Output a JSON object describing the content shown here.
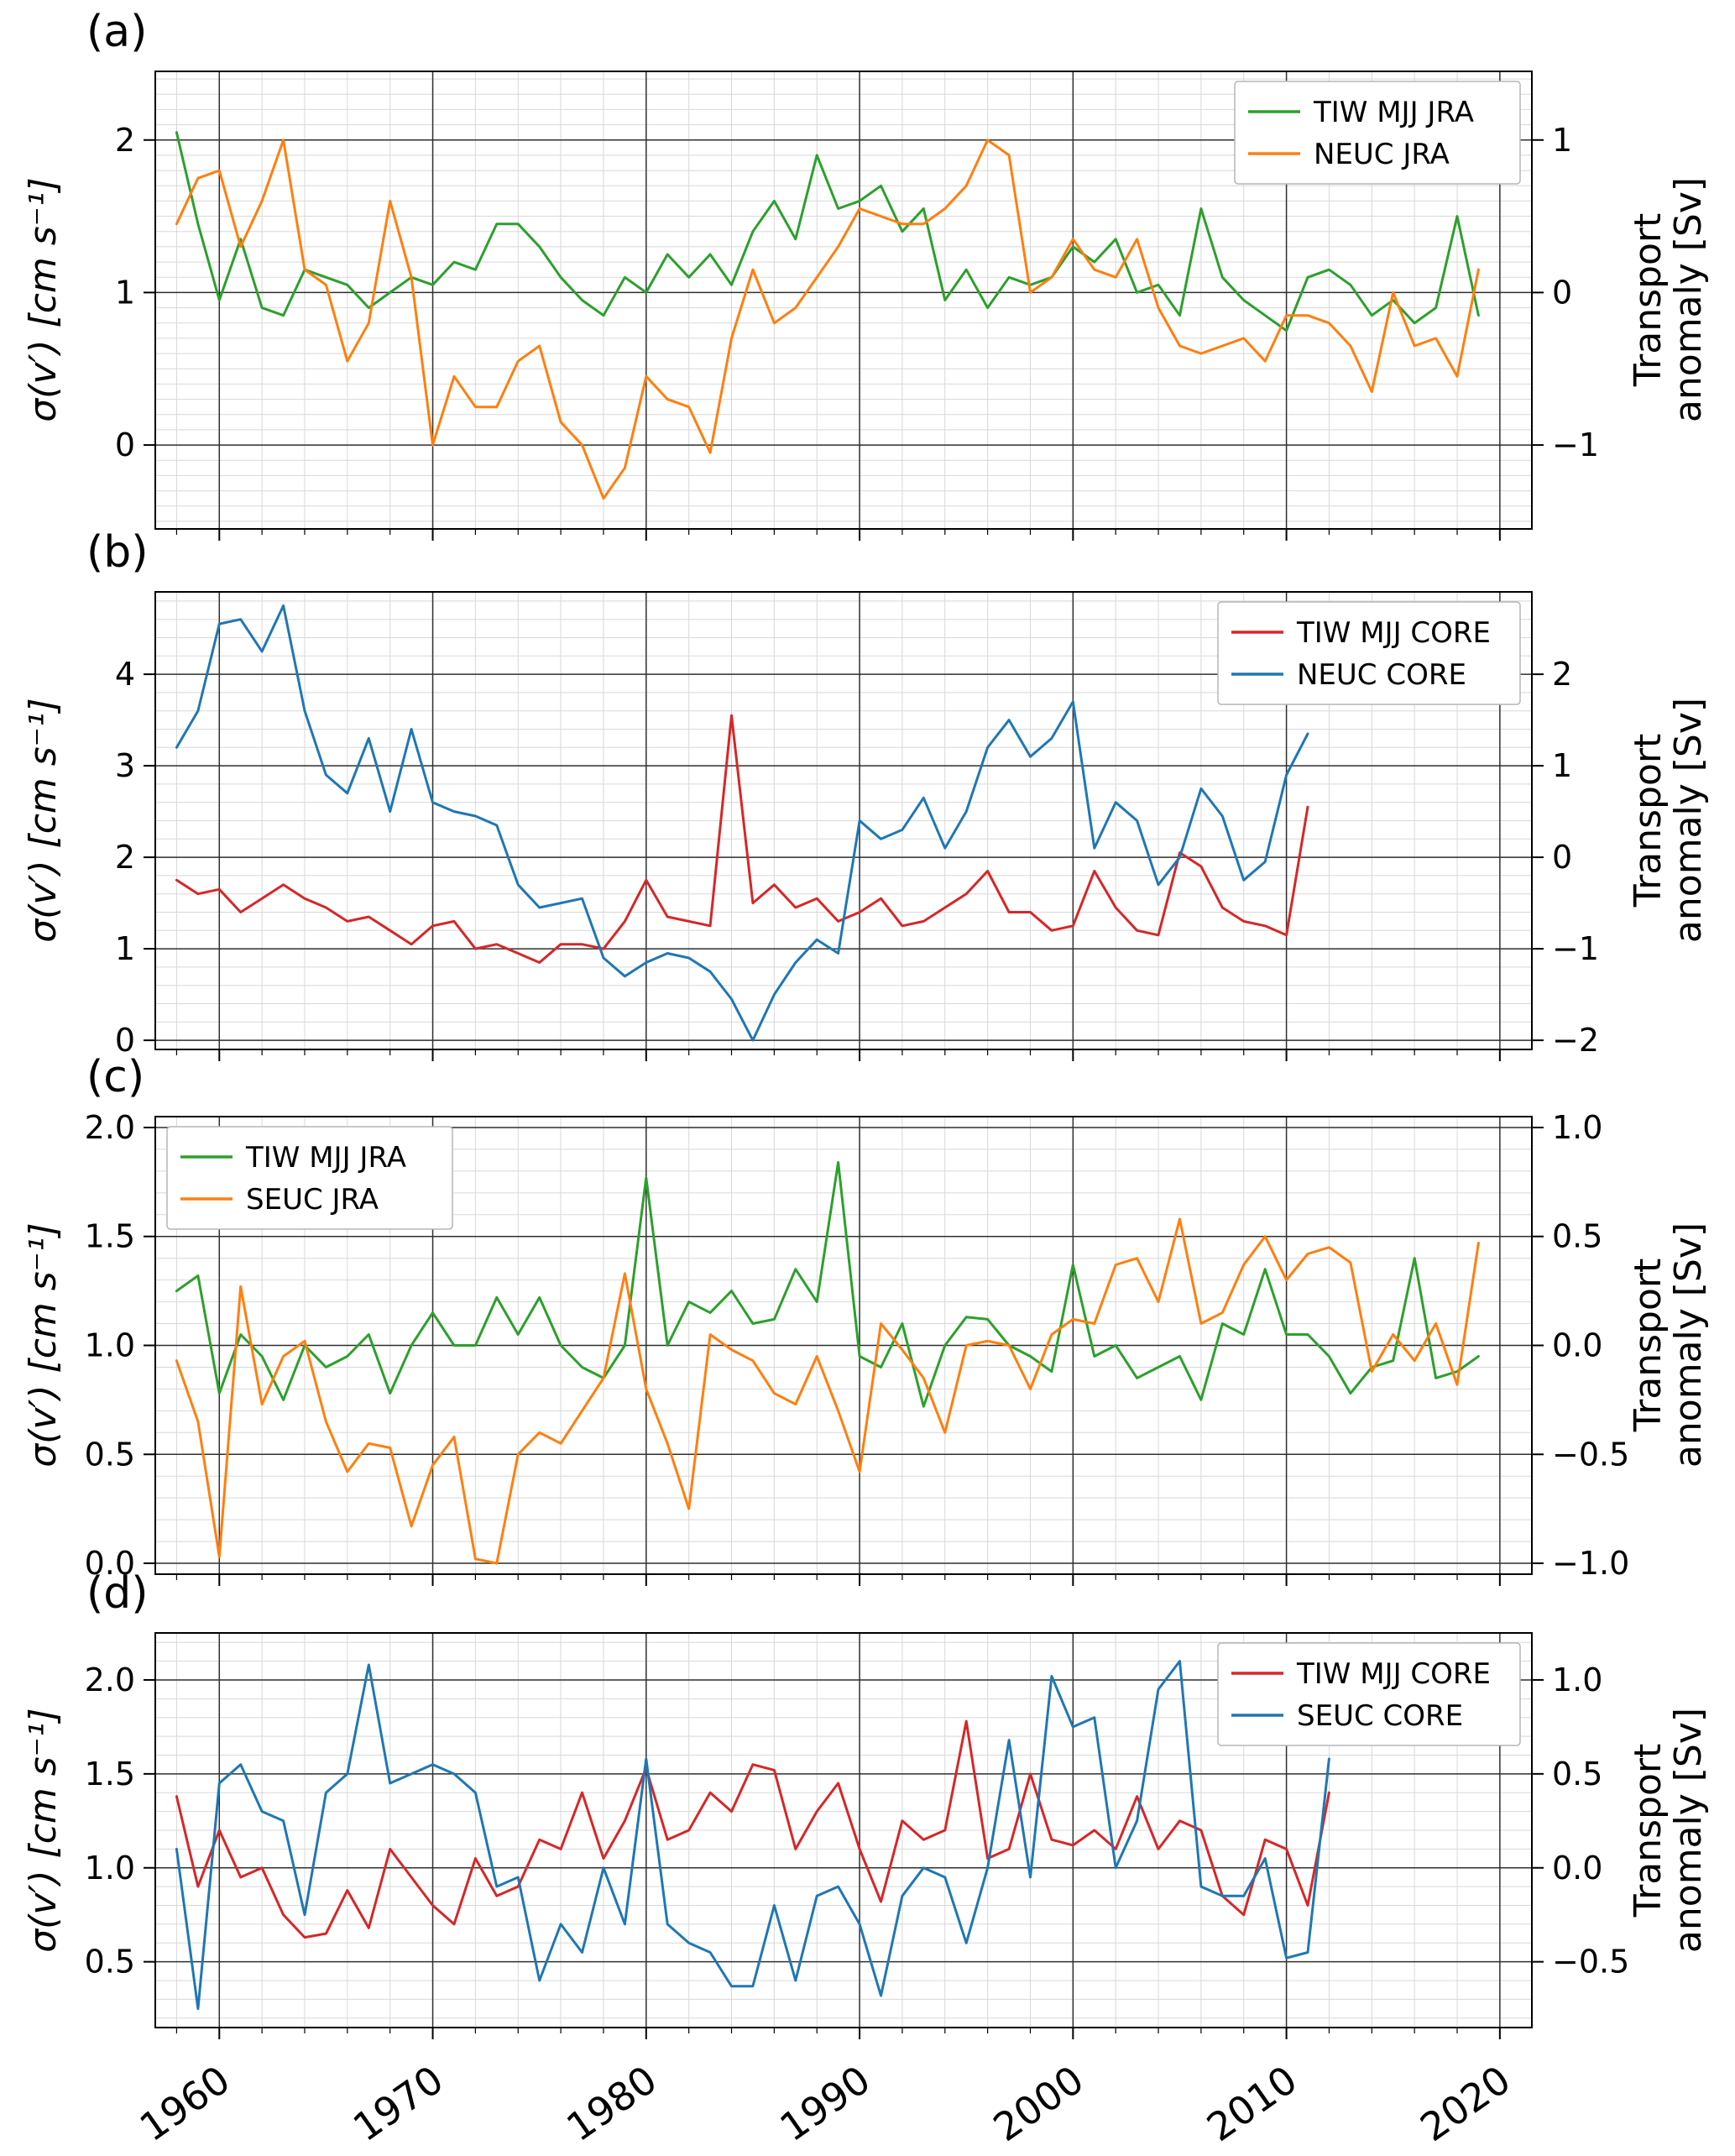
{
  "figure": {
    "background": "#ffffff",
    "grid": {
      "minor_color": "#d8d8d8",
      "major_color": "#2f2f2f"
    }
  },
  "chart_data": [
    {
      "type": "line",
      "panel_label": "(a)",
      "title": "",
      "x": {
        "range": [
          1957,
          2021.5
        ],
        "ticks": [
          1960,
          1970,
          1980,
          1990,
          2000,
          2010,
          2020
        ],
        "minor_step": 2
      },
      "left_axis": {
        "label": "σ(v′) [cm s⁻¹]",
        "range": [
          -0.55,
          2.45
        ],
        "ticks": [
          0,
          1,
          2
        ],
        "decimals": 0,
        "minor_step": 0.1
      },
      "right_axis": {
        "label": "Transport anomaly [Sv]",
        "label_lines": [
          "Transport",
          "anomaly [Sv]"
        ],
        "range": [
          -1.55,
          1.45
        ],
        "ticks": [
          -1,
          0,
          1
        ],
        "decimals": 0
      },
      "legend": {
        "position": "top-right"
      },
      "series": [
        {
          "name": "TIW MJJ JRA",
          "color": "#2ca02c",
          "axis": "left",
          "start_year": 1958,
          "values": [
            2.05,
            1.45,
            0.95,
            1.35,
            0.9,
            0.85,
            1.15,
            1.1,
            1.05,
            0.9,
            1.0,
            1.1,
            1.05,
            1.2,
            1.15,
            1.45,
            1.45,
            1.3,
            1.1,
            0.95,
            0.85,
            1.1,
            1.0,
            1.25,
            1.1,
            1.25,
            1.05,
            1.4,
            1.6,
            1.35,
            1.9,
            1.55,
            1.6,
            1.7,
            1.4,
            1.55,
            0.95,
            1.15,
            0.9,
            1.1,
            1.05,
            1.1,
            1.3,
            1.2,
            1.35,
            1.0,
            1.05,
            0.85,
            1.55,
            1.1,
            0.95,
            0.85,
            0.75,
            1.1,
            1.15,
            1.05,
            0.85,
            0.95,
            0.8,
            0.9,
            1.5,
            0.85
          ]
        },
        {
          "name": "NEUC JRA",
          "color": "#ff7f0e",
          "axis": "right",
          "start_year": 1958,
          "values": [
            0.45,
            0.75,
            0.8,
            0.3,
            0.6,
            1.0,
            0.15,
            0.05,
            -0.45,
            -0.2,
            0.6,
            0.1,
            -1.0,
            -0.55,
            -0.75,
            -0.75,
            -0.45,
            -0.35,
            -0.85,
            -1.0,
            -1.35,
            -1.15,
            -0.55,
            -0.7,
            -0.75,
            -1.05,
            -0.3,
            0.15,
            -0.2,
            -0.1,
            0.1,
            0.3,
            0.55,
            0.5,
            0.45,
            0.45,
            0.55,
            0.7,
            1.0,
            0.9,
            0.0,
            0.1,
            0.35,
            0.15,
            0.1,
            0.35,
            -0.1,
            -0.35,
            -0.4,
            -0.35,
            -0.3,
            -0.45,
            -0.15,
            -0.15,
            -0.2,
            -0.35,
            -0.65,
            0.0,
            -0.35,
            -0.3,
            -0.55,
            0.15
          ]
        }
      ]
    },
    {
      "type": "line",
      "panel_label": "(b)",
      "title": "",
      "x": {
        "range": [
          1957,
          2021.5
        ],
        "ticks": [
          1960,
          1970,
          1980,
          1990,
          2000,
          2010,
          2020
        ],
        "minor_step": 2
      },
      "left_axis": {
        "label": "σ(v′) [cm s⁻¹]",
        "range": [
          -0.1,
          4.9
        ],
        "ticks": [
          0,
          1,
          2,
          3,
          4
        ],
        "decimals": 0,
        "minor_step": 0.2
      },
      "right_axis": {
        "label": "Transport anomaly [Sv]",
        "label_lines": [
          "Transport",
          "anomaly [Sv]"
        ],
        "range": [
          -2.1,
          2.9
        ],
        "ticks": [
          -2,
          -1,
          0,
          1,
          2
        ],
        "decimals": 0
      },
      "legend": {
        "position": "top-right"
      },
      "series": [
        {
          "name": "TIW MJJ CORE",
          "color": "#d62728",
          "axis": "left",
          "start_year": 1958,
          "values": [
            1.75,
            1.6,
            1.65,
            1.4,
            1.55,
            1.7,
            1.55,
            1.45,
            1.3,
            1.35,
            1.2,
            1.05,
            1.25,
            1.3,
            1.0,
            1.05,
            0.95,
            0.85,
            1.05,
            1.05,
            1.0,
            1.3,
            1.75,
            1.35,
            1.3,
            1.25,
            3.55,
            1.5,
            1.7,
            1.45,
            1.55,
            1.3,
            1.4,
            1.55,
            1.25,
            1.3,
            1.45,
            1.6,
            1.85,
            1.4,
            1.4,
            1.2,
            1.25,
            1.85,
            1.45,
            1.2,
            1.15,
            2.05,
            1.9,
            1.45,
            1.3,
            1.25,
            1.15,
            2.55
          ]
        },
        {
          "name": "NEUC CORE",
          "color": "#1f77b4",
          "axis": "right",
          "start_year": 1958,
          "values": [
            1.2,
            1.6,
            2.55,
            2.6,
            2.25,
            2.75,
            1.6,
            0.9,
            0.7,
            1.3,
            0.5,
            1.4,
            0.6,
            0.5,
            0.45,
            0.35,
            -0.3,
            -0.55,
            -0.5,
            -0.45,
            -1.1,
            -1.3,
            -1.15,
            -1.05,
            -1.1,
            -1.25,
            -1.55,
            -2.0,
            -1.5,
            -1.15,
            -0.9,
            -1.05,
            0.4,
            0.2,
            0.3,
            0.65,
            0.1,
            0.5,
            1.2,
            1.5,
            1.1,
            1.3,
            1.7,
            0.1,
            0.6,
            0.4,
            -0.3,
            0.0,
            0.75,
            0.45,
            -0.25,
            -0.05,
            0.9,
            1.35
          ]
        }
      ]
    },
    {
      "type": "line",
      "panel_label": "(c)",
      "title": "",
      "x": {
        "range": [
          1957,
          2021.5
        ],
        "ticks": [
          1960,
          1970,
          1980,
          1990,
          2000,
          2010,
          2020
        ],
        "minor_step": 2
      },
      "left_axis": {
        "label": "σ(v′) [cm s⁻¹]",
        "range": [
          -0.05,
          2.05
        ],
        "ticks": [
          0.0,
          0.5,
          1.0,
          1.5,
          2.0
        ],
        "decimals": 1,
        "minor_step": 0.1
      },
      "right_axis": {
        "label": "Transport anomaly [Sv]",
        "label_lines": [
          "Transport",
          "anomaly [Sv]"
        ],
        "range": [
          -1.05,
          1.05
        ],
        "ticks": [
          -1.0,
          -0.5,
          0.0,
          0.5,
          1.0
        ],
        "decimals": 1
      },
      "legend": {
        "position": "top-left"
      },
      "series": [
        {
          "name": "TIW MJJ JRA",
          "color": "#2ca02c",
          "axis": "left",
          "start_year": 1958,
          "values": [
            1.25,
            1.32,
            0.78,
            1.05,
            0.95,
            0.75,
            1.0,
            0.9,
            0.95,
            1.05,
            0.78,
            1.0,
            1.15,
            1.0,
            1.0,
            1.22,
            1.05,
            1.22,
            1.0,
            0.9,
            0.85,
            1.0,
            1.77,
            1.0,
            1.2,
            1.15,
            1.25,
            1.1,
            1.12,
            1.35,
            1.2,
            1.84,
            0.95,
            0.9,
            1.1,
            0.72,
            1.0,
            1.13,
            1.12,
            1.0,
            0.95,
            0.88,
            1.37,
            0.95,
            1.0,
            0.85,
            0.9,
            0.95,
            0.75,
            1.1,
            1.05,
            1.35,
            1.05,
            1.05,
            0.95,
            0.78,
            0.9,
            0.93,
            1.4,
            0.85,
            0.88,
            0.95
          ]
        },
        {
          "name": "SEUC JRA",
          "color": "#ff7f0e",
          "axis": "right",
          "start_year": 1958,
          "values": [
            -0.07,
            -0.35,
            -0.97,
            0.27,
            -0.27,
            -0.05,
            0.02,
            -0.35,
            -0.58,
            -0.45,
            -0.47,
            -0.83,
            -0.55,
            -0.42,
            -0.98,
            -1.0,
            -0.5,
            -0.4,
            -0.45,
            -0.3,
            -0.15,
            0.33,
            -0.2,
            -0.45,
            -0.75,
            0.05,
            -0.02,
            -0.07,
            -0.22,
            -0.27,
            -0.05,
            -0.3,
            -0.58,
            0.1,
            -0.02,
            -0.15,
            -0.4,
            0.0,
            0.02,
            0.0,
            -0.2,
            0.05,
            0.12,
            0.1,
            0.37,
            0.4,
            0.2,
            0.58,
            0.1,
            0.15,
            0.37,
            0.5,
            0.3,
            0.42,
            0.45,
            0.38,
            -0.12,
            0.05,
            -0.07,
            0.1,
            -0.18,
            0.47
          ]
        }
      ]
    },
    {
      "type": "line",
      "panel_label": "(d)",
      "title": "",
      "x": {
        "range": [
          1957,
          2021.5
        ],
        "ticks": [
          1960,
          1970,
          1980,
          1990,
          2000,
          2010,
          2020
        ],
        "minor_step": 2
      },
      "left_axis": {
        "label": "σ(v′) [cm s⁻¹]",
        "range": [
          0.15,
          2.25
        ],
        "ticks": [
          0.5,
          1.0,
          1.5,
          2.0
        ],
        "decimals": 1,
        "minor_step": 0.1
      },
      "right_axis": {
        "label": "Transport anomaly [Sv]",
        "label_lines": [
          "Transport",
          "anomaly [Sv]"
        ],
        "range": [
          -0.85,
          1.25
        ],
        "ticks": [
          -0.5,
          0.0,
          0.5,
          1.0
        ],
        "decimals": 1
      },
      "legend": {
        "position": "top-right"
      },
      "series": [
        {
          "name": "TIW MJJ CORE",
          "color": "#d62728",
          "axis": "left",
          "start_year": 1958,
          "values": [
            1.38,
            0.9,
            1.2,
            0.95,
            1.0,
            0.75,
            0.63,
            0.65,
            0.88,
            0.68,
            1.1,
            0.95,
            0.8,
            0.7,
            1.05,
            0.85,
            0.9,
            1.15,
            1.1,
            1.4,
            1.05,
            1.25,
            1.53,
            1.15,
            1.2,
            1.4,
            1.3,
            1.55,
            1.52,
            1.1,
            1.3,
            1.45,
            1.1,
            0.82,
            1.25,
            1.15,
            1.2,
            1.78,
            1.05,
            1.1,
            1.5,
            1.15,
            1.12,
            1.2,
            1.1,
            1.38,
            1.1,
            1.25,
            1.2,
            0.85,
            0.75,
            1.15,
            1.1,
            0.8,
            1.4
          ]
        },
        {
          "name": "SEUC CORE",
          "color": "#1f77b4",
          "axis": "right",
          "start_year": 1958,
          "values": [
            0.1,
            -0.75,
            0.45,
            0.55,
            0.3,
            0.25,
            -0.25,
            0.4,
            0.5,
            1.08,
            0.45,
            0.5,
            0.55,
            0.5,
            0.4,
            -0.1,
            -0.05,
            -0.6,
            -0.3,
            -0.45,
            0.0,
            -0.3,
            0.58,
            -0.3,
            -0.4,
            -0.45,
            -0.63,
            -0.63,
            -0.2,
            -0.6,
            -0.15,
            -0.1,
            -0.3,
            -0.68,
            -0.15,
            0.0,
            -0.05,
            -0.4,
            0.0,
            0.68,
            -0.05,
            1.02,
            0.75,
            0.8,
            0.0,
            0.25,
            0.95,
            1.1,
            -0.1,
            -0.15,
            -0.15,
            0.05,
            -0.48,
            -0.45,
            0.58
          ]
        }
      ]
    }
  ]
}
